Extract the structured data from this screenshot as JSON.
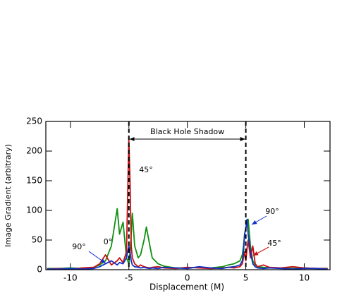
{
  "chart_data": {
    "type": "line",
    "xlabel": "Displacement (M)",
    "ylabel": "Image Gradient (arbitrary)",
    "x": [
      -12,
      -11,
      -10,
      -9,
      -8,
      -7.5,
      -7,
      -6.5,
      -6,
      -5.8,
      -5.5,
      -5.2,
      -5,
      -4.9,
      -4.8,
      -4.7,
      -4.5,
      -4.2,
      -4,
      -3.7,
      -3.5,
      -3.2,
      -3,
      -2.5,
      -2,
      -1,
      0,
      1,
      2,
      3,
      3.5,
      4,
      4.5,
      4.7,
      4.8,
      4.9,
      5,
      5.1,
      5.2,
      5.4,
      5.6,
      5.8,
      6,
      6.5,
      7,
      8,
      9,
      10,
      11,
      12
    ],
    "series": [
      {
        "color": "#109010",
        "values": [
          2,
          2,
          3,
          2,
          4,
          8,
          15,
          40,
          103,
          60,
          80,
          20,
          10,
          30,
          60,
          95,
          40,
          20,
          25,
          50,
          72,
          40,
          20,
          10,
          6,
          3,
          3,
          4,
          3,
          5,
          8,
          10,
          15,
          25,
          40,
          60,
          70,
          80,
          85,
          40,
          15,
          8,
          5,
          4,
          3,
          3,
          2,
          3,
          2,
          2
        ]
      },
      {
        "color": "#c81010",
        "values": [
          1,
          2,
          1,
          3,
          4,
          10,
          25,
          8,
          15,
          20,
          12,
          30,
          220,
          150,
          40,
          20,
          10,
          5,
          8,
          5,
          4,
          3,
          4,
          5,
          3,
          2,
          4,
          3,
          2,
          3,
          4,
          3,
          5,
          10,
          20,
          30,
          15,
          35,
          50,
          20,
          40,
          10,
          5,
          8,
          4,
          3,
          5,
          3,
          2,
          2
        ]
      },
      {
        "color": "#1030c8",
        "values": [
          1,
          1,
          2,
          1,
          2,
          5,
          10,
          15,
          8,
          12,
          10,
          20,
          40,
          30,
          15,
          8,
          5,
          4,
          3,
          4,
          3,
          2,
          3,
          2,
          4,
          3,
          2,
          5,
          3,
          2,
          4,
          5,
          8,
          15,
          30,
          60,
          70,
          85,
          60,
          30,
          10,
          5,
          3,
          2,
          3,
          2,
          1,
          2,
          2,
          1
        ]
      }
    ],
    "xlim": [
      -12.1,
      12.2
    ],
    "ylim": [
      0,
      250
    ],
    "xticks": [
      -10,
      -5,
      0,
      5,
      10
    ],
    "yticks": [
      0,
      50,
      100,
      150,
      200,
      250
    ],
    "shadow": {
      "label": "Black Hole Shadow",
      "bounds": [
        -5,
        5
      ]
    },
    "annotations": [
      "45°",
      "0°",
      "90°",
      "90°",
      "45°"
    ]
  }
}
